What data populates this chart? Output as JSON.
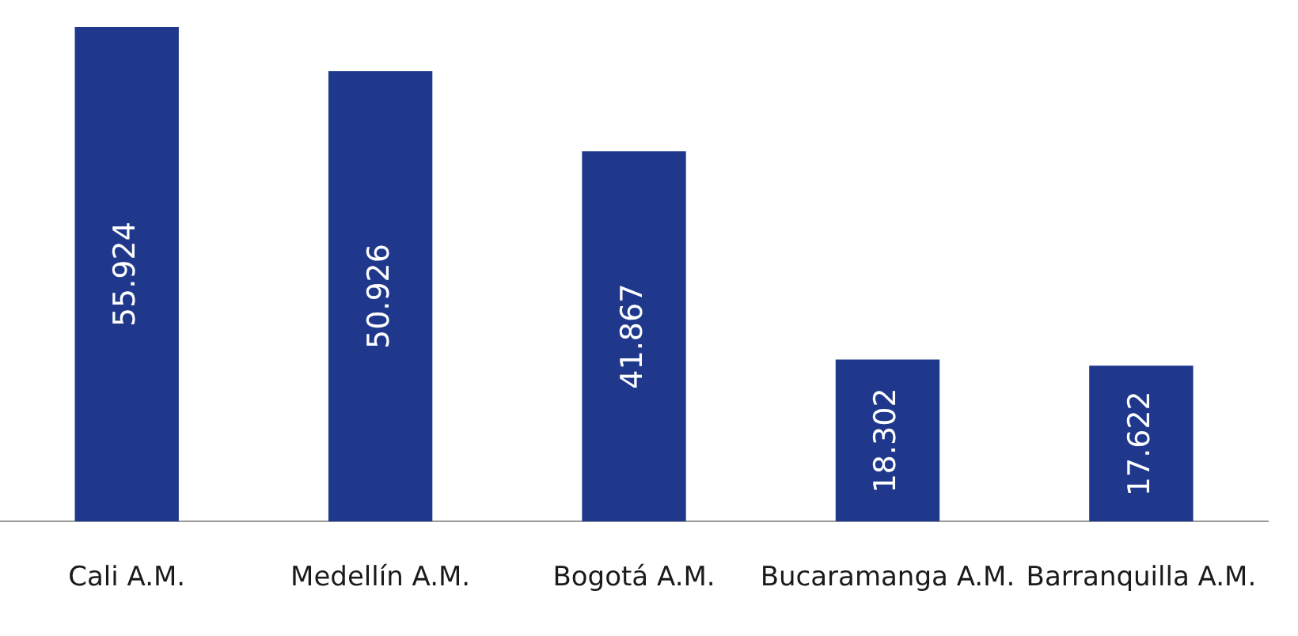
{
  "chart_data": {
    "type": "bar",
    "categories": [
      "Cali A.M.",
      "Medellín A.M.",
      "Bogotá A.M.",
      "Bucaramanga A.M.",
      "Barranquilla A.M."
    ],
    "values": [
      55.924,
      50.926,
      41.867,
      18.302,
      17.622
    ],
    "color": "#1f388c",
    "data_labels": true,
    "grid": false,
    "legend": false,
    "tick_labels": "x"
  }
}
